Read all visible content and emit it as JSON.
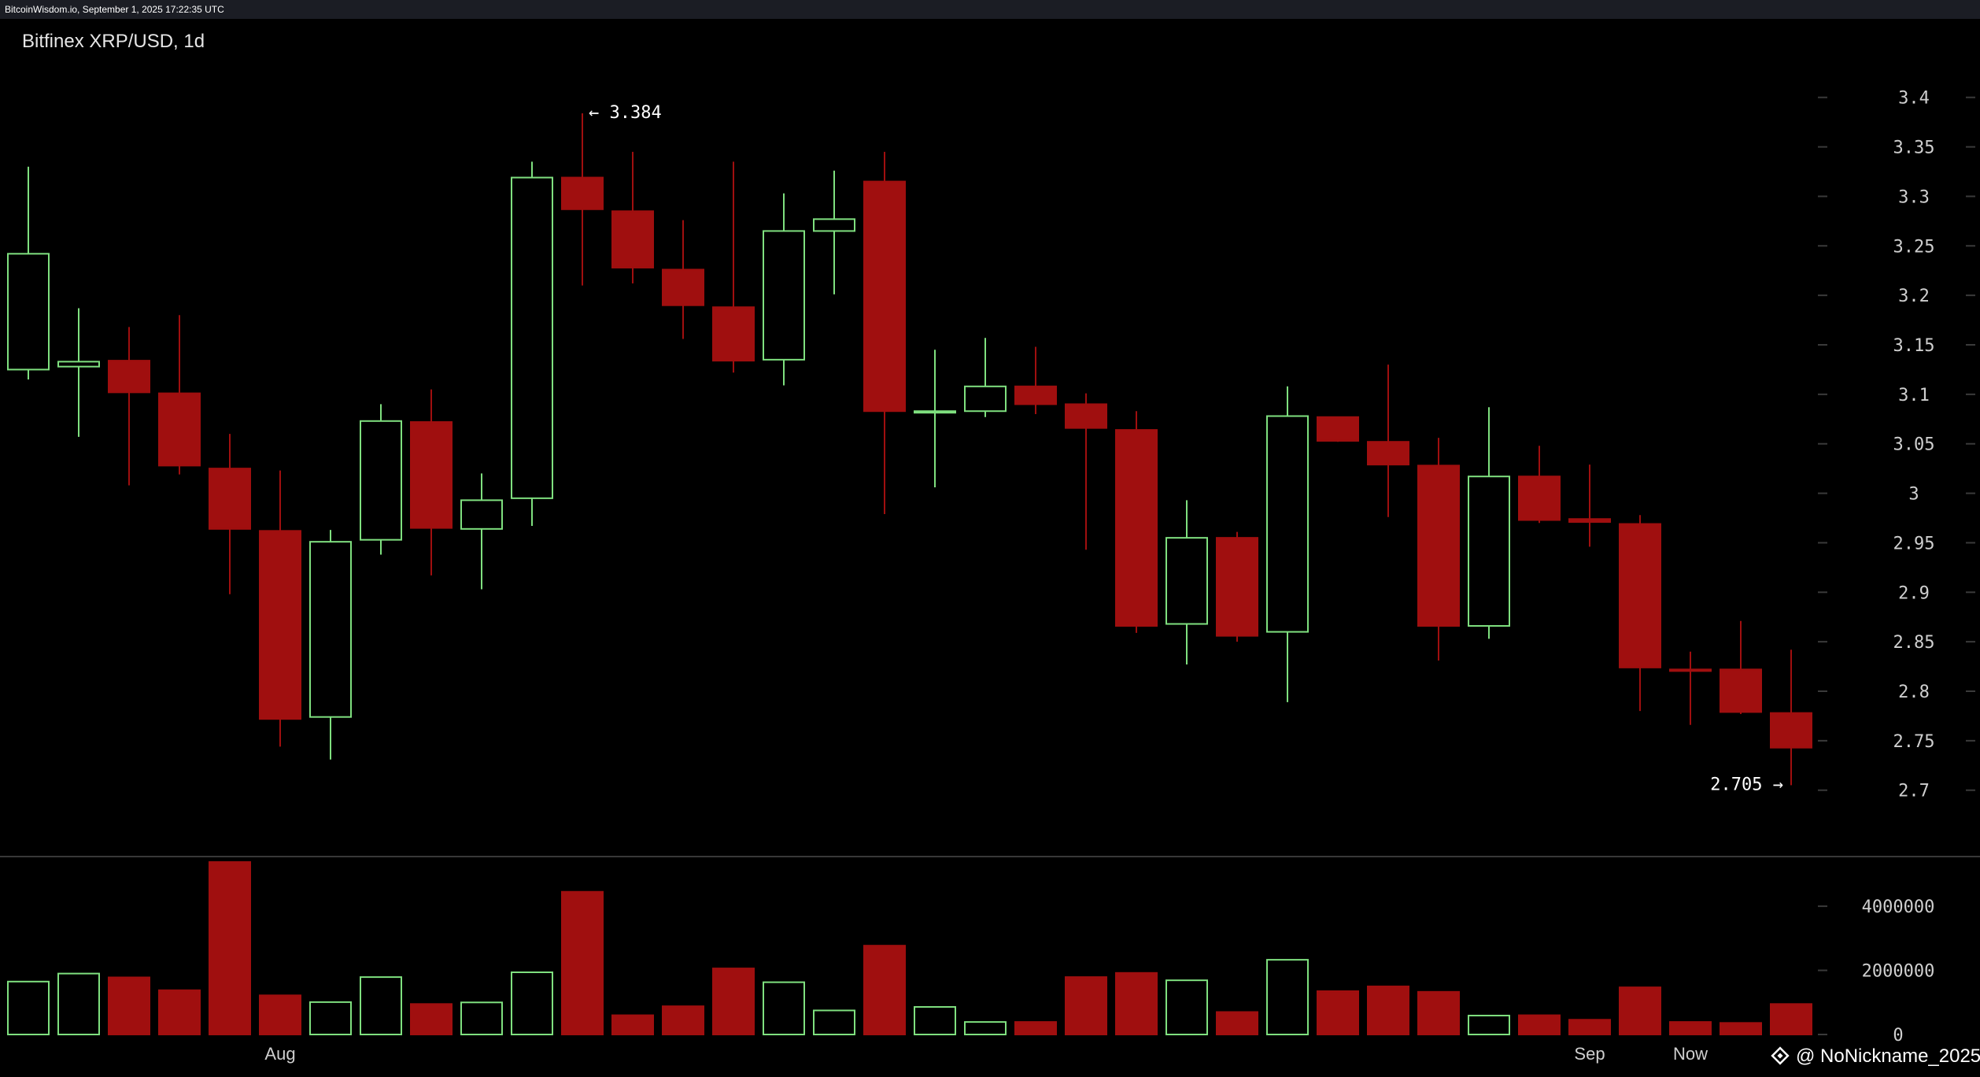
{
  "header": {
    "source_line": "BitcoinWisdom.io, September 1, 2025 17:22:35 UTC"
  },
  "watermark": {
    "text": "@ NoNickname_2025",
    "icon": "binance-diamond-icon"
  },
  "colors": {
    "up": "#7fe07f",
    "down": "#a00f0f",
    "background": "#000000",
    "frame": "#1b1d24"
  },
  "chart_data": {
    "type": "candlestick",
    "title": "Bitfinex XRP/USD, 1d",
    "price_axis": {
      "ylim": [
        2.66,
        3.43
      ],
      "ticks": [
        3.4,
        3.35,
        3.3,
        3.25,
        3.2,
        3.15,
        3.1,
        3.05,
        3.0,
        2.95,
        2.9,
        2.85,
        2.8,
        2.75,
        2.7
      ],
      "tick_labels": [
        "3.4",
        "3.35",
        "3.3",
        "3.25",
        "3.2",
        "3.15",
        "3.1",
        "3.05",
        "3",
        "2.95",
        "2.9",
        "2.85",
        "2.8",
        "2.75",
        "2.7"
      ]
    },
    "volume_axis": {
      "ylim": [
        0,
        5500000
      ],
      "ticks": [
        0,
        2000000,
        4000000
      ],
      "tick_labels": [
        "0",
        "2000000",
        "4000000"
      ]
    },
    "x_ticks": [
      {
        "index": 5,
        "label": "Aug"
      },
      {
        "index": 31,
        "label": "Sep"
      },
      {
        "index": 33,
        "label": "Now"
      }
    ],
    "annotations": {
      "high": {
        "value": 3.384,
        "index": 11,
        "label": "← 3.384"
      },
      "low": {
        "value": 2.705,
        "index": 35,
        "label": "2.705 →"
      }
    },
    "grid": false,
    "candles": [
      {
        "open": 3.125,
        "high": 3.33,
        "low": 3.115,
        "close": 3.242,
        "volume": 1650000
      },
      {
        "open": 3.128,
        "high": 3.187,
        "low": 3.057,
        "close": 3.133,
        "volume": 1900000
      },
      {
        "open": 3.134,
        "high": 3.168,
        "low": 3.008,
        "close": 3.102,
        "volume": 1780000
      },
      {
        "open": 3.101,
        "high": 3.18,
        "low": 3.019,
        "close": 3.028,
        "volume": 1380000
      },
      {
        "open": 3.025,
        "high": 3.06,
        "low": 2.898,
        "close": 2.964,
        "volume": 5380000
      },
      {
        "open": 2.962,
        "high": 3.023,
        "low": 2.744,
        "close": 2.772,
        "volume": 1220000
      },
      {
        "open": 2.774,
        "high": 2.963,
        "low": 2.731,
        "close": 2.951,
        "volume": 1010000
      },
      {
        "open": 2.953,
        "high": 3.09,
        "low": 2.938,
        "close": 3.073,
        "volume": 1790000
      },
      {
        "open": 3.072,
        "high": 3.105,
        "low": 2.917,
        "close": 2.965,
        "volume": 950000
      },
      {
        "open": 2.964,
        "high": 3.02,
        "low": 2.903,
        "close": 2.993,
        "volume": 1000000
      },
      {
        "open": 2.995,
        "high": 3.335,
        "low": 2.967,
        "close": 3.319,
        "volume": 1940000
      },
      {
        "open": 3.319,
        "high": 3.384,
        "low": 3.21,
        "close": 3.287,
        "volume": 4450000
      },
      {
        "open": 3.285,
        "high": 3.345,
        "low": 3.212,
        "close": 3.228,
        "volume": 600000
      },
      {
        "open": 3.226,
        "high": 3.276,
        "low": 3.156,
        "close": 3.19,
        "volume": 880000
      },
      {
        "open": 3.188,
        "high": 3.335,
        "low": 3.122,
        "close": 3.134,
        "volume": 2060000
      },
      {
        "open": 3.135,
        "high": 3.303,
        "low": 3.109,
        "close": 3.265,
        "volume": 1630000
      },
      {
        "open": 3.265,
        "high": 3.326,
        "low": 3.201,
        "close": 3.277,
        "volume": 750000
      },
      {
        "open": 3.315,
        "high": 3.345,
        "low": 2.979,
        "close": 3.083,
        "volume": 2770000
      },
      {
        "open": 3.082,
        "high": 3.145,
        "low": 3.006,
        "close": 3.083,
        "volume": 860000
      },
      {
        "open": 3.083,
        "high": 3.157,
        "low": 3.077,
        "close": 3.108,
        "volume": 390000
      },
      {
        "open": 3.108,
        "high": 3.148,
        "low": 3.08,
        "close": 3.09,
        "volume": 390000
      },
      {
        "open": 3.09,
        "high": 3.101,
        "low": 2.943,
        "close": 3.066,
        "volume": 1790000
      },
      {
        "open": 3.064,
        "high": 3.083,
        "low": 2.859,
        "close": 2.866,
        "volume": 1920000
      },
      {
        "open": 2.868,
        "high": 2.993,
        "low": 2.827,
        "close": 2.955,
        "volume": 1690000
      },
      {
        "open": 2.955,
        "high": 2.961,
        "low": 2.85,
        "close": 2.856,
        "volume": 700000
      },
      {
        "open": 2.86,
        "high": 3.108,
        "low": 2.789,
        "close": 3.078,
        "volume": 2330000
      },
      {
        "open": 3.077,
        "high": 3.077,
        "low": 3.052,
        "close": 3.053,
        "volume": 1350000
      },
      {
        "open": 3.052,
        "high": 3.13,
        "low": 2.976,
        "close": 3.029,
        "volume": 1500000
      },
      {
        "open": 3.028,
        "high": 3.056,
        "low": 2.831,
        "close": 2.866,
        "volume": 1330000
      },
      {
        "open": 2.866,
        "high": 3.087,
        "low": 2.853,
        "close": 3.017,
        "volume": 590000
      },
      {
        "open": 3.017,
        "high": 3.048,
        "low": 2.97,
        "close": 2.973,
        "volume": 600000
      },
      {
        "open": 2.974,
        "high": 3.029,
        "low": 2.946,
        "close": 2.971,
        "volume": 460000
      },
      {
        "open": 2.969,
        "high": 2.978,
        "low": 2.78,
        "close": 2.824,
        "volume": 1470000
      },
      {
        "open": 2.822,
        "high": 2.84,
        "low": 2.766,
        "close": 2.821,
        "volume": 390000
      },
      {
        "open": 2.822,
        "high": 2.871,
        "low": 2.777,
        "close": 2.779,
        "volume": 360000
      },
      {
        "open": 2.778,
        "high": 2.842,
        "low": 2.705,
        "close": 2.743,
        "volume": 950000
      }
    ]
  }
}
